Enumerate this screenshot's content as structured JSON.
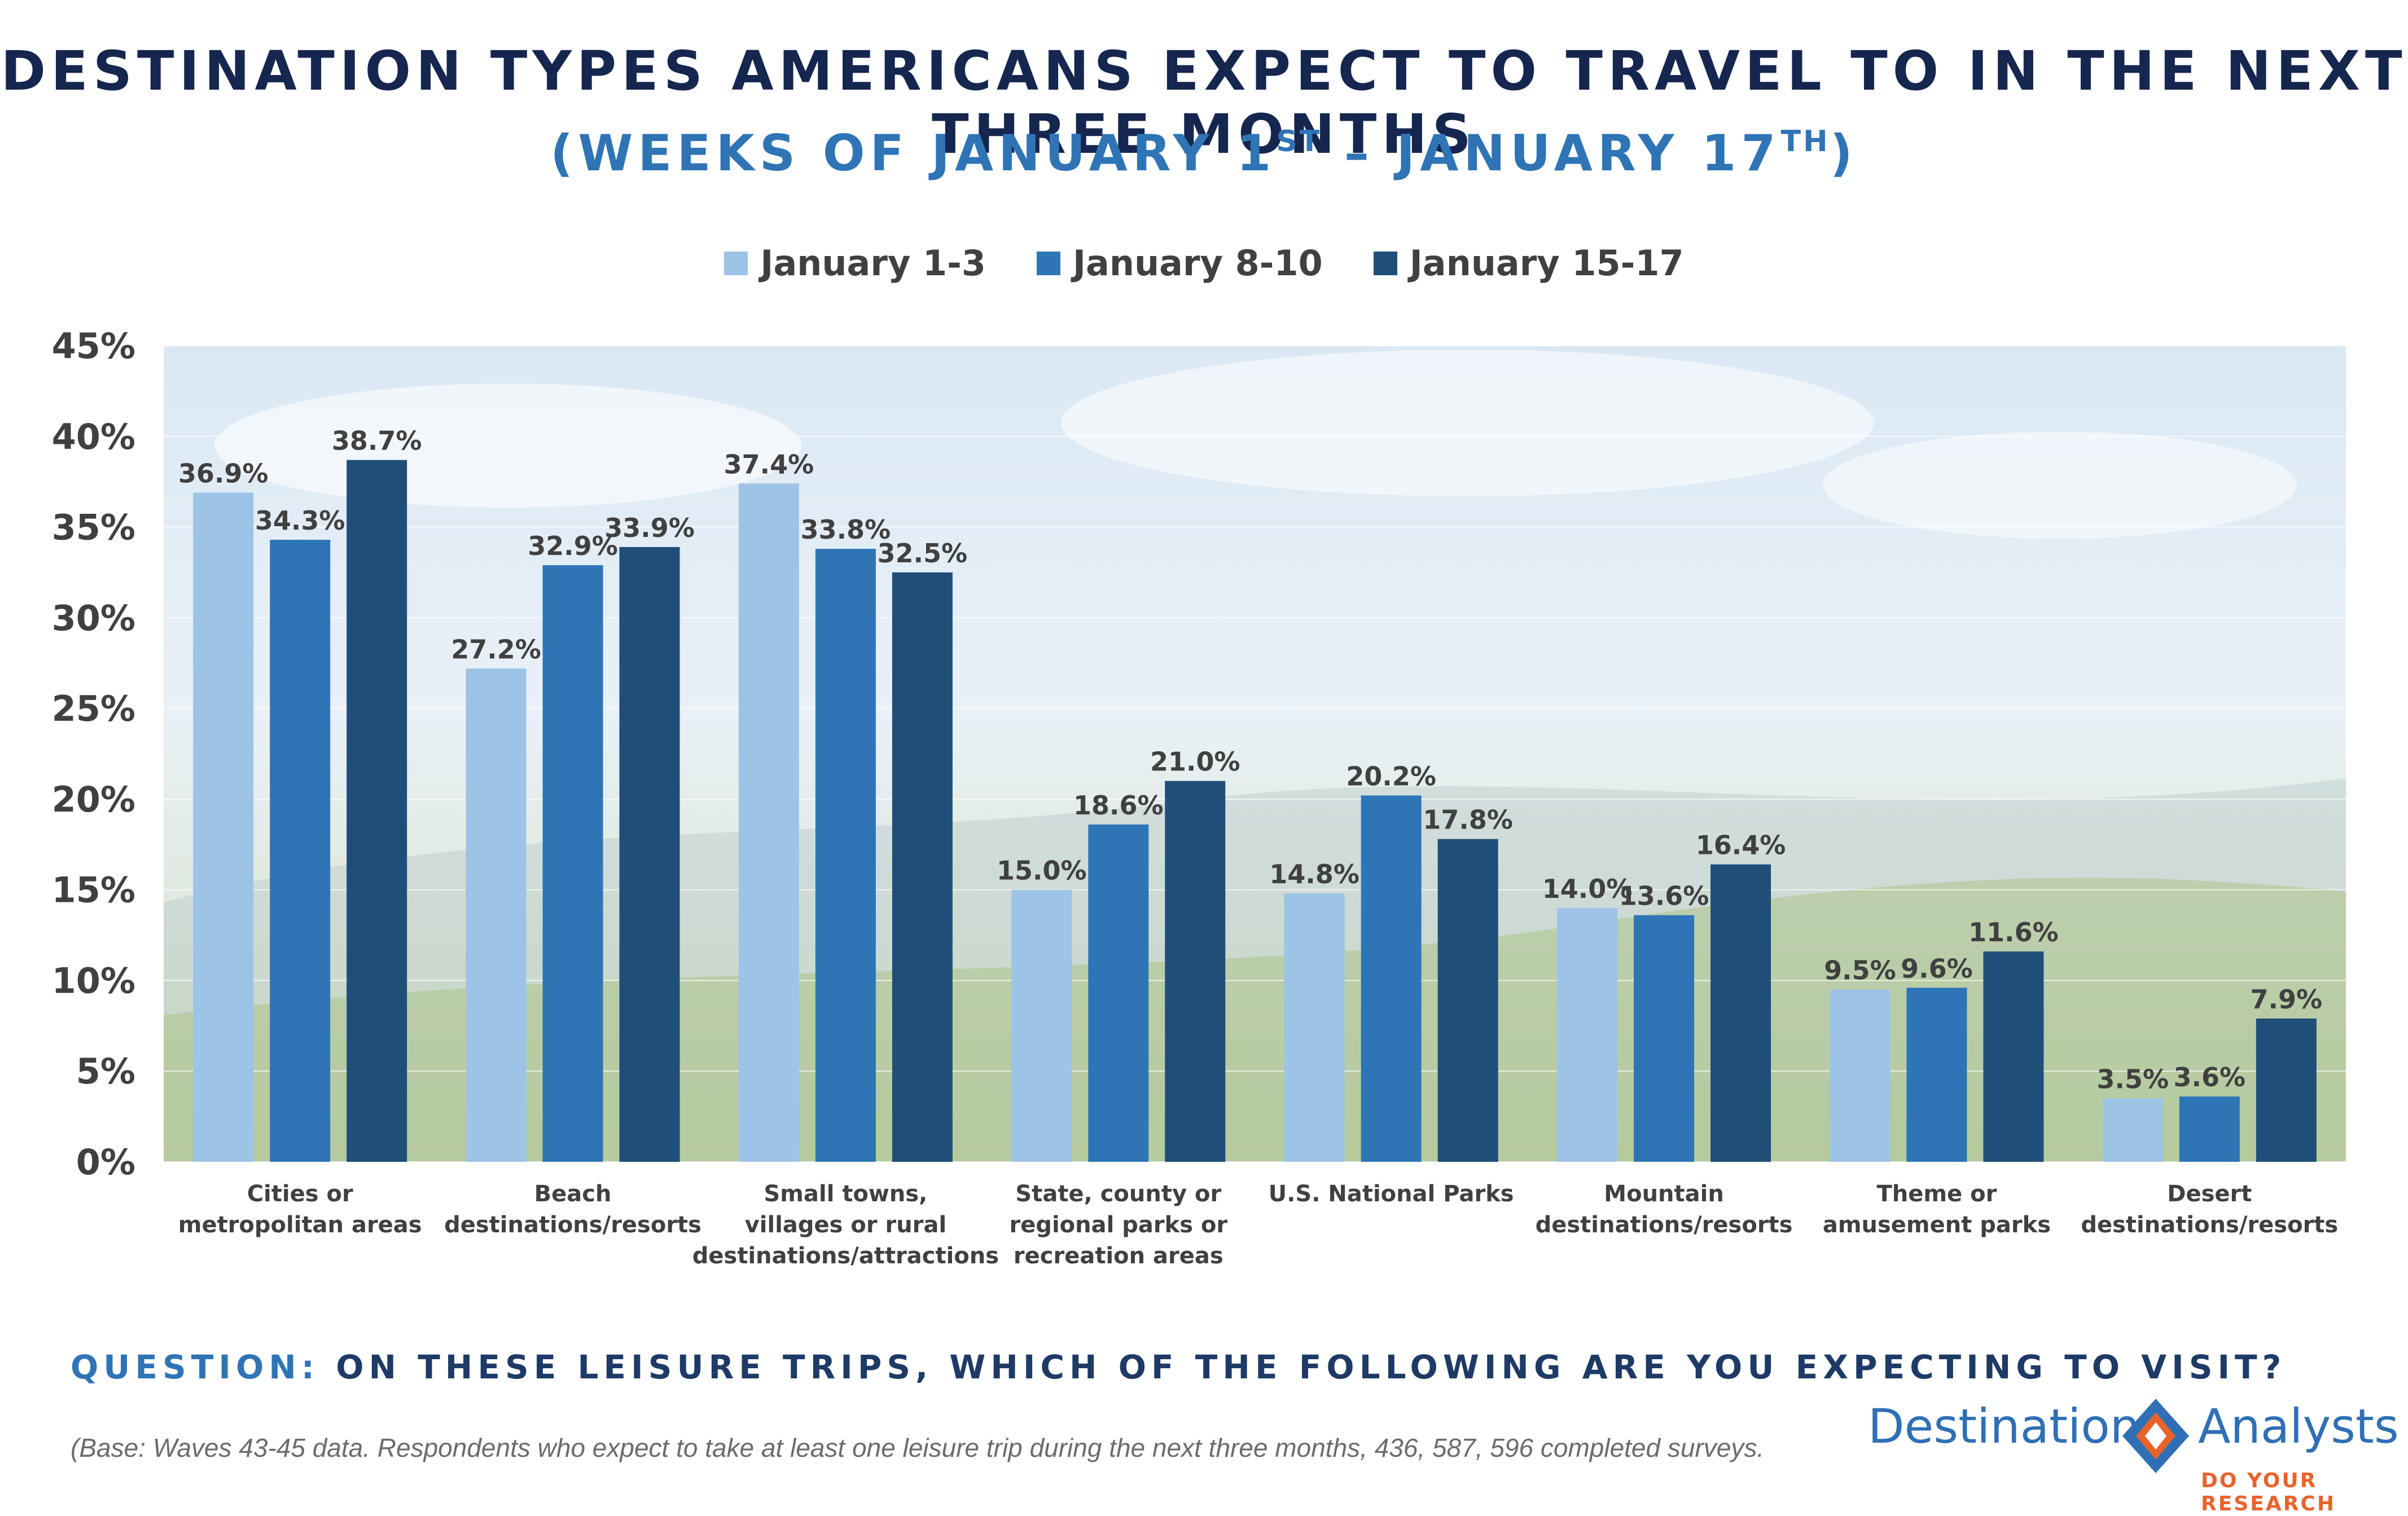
{
  "title": {
    "main": "DESTINATION TYPES AMERICANS EXPECT TO TRAVEL TO IN THE NEXT THREE MONTHS",
    "sub_prefix": "(WEEKS OF JANUARY 1",
    "sub_sup1": "ST",
    "sub_mid": " – JANUARY 17",
    "sub_sup2": "TH",
    "sub_suffix": ")"
  },
  "question": {
    "label": "QUESTION:",
    "text": "ON THESE LEISURE TRIPS, WHICH OF THE FOLLOWING ARE YOU EXPECTING TO VISIT?"
  },
  "base_note": "(Base: Waves 43-45 data. Respondents who expect to take at least one leisure trip during the next three months, 436, 587, 596 completed surveys.",
  "logo": {
    "left_word": "Destination",
    "right_word": "Analysts",
    "tagline": "DO YOUR RESEARCH"
  },
  "colors": {
    "series": [
      "#9dc3e6",
      "#2e75b6",
      "#1f4e79"
    ],
    "title": "#15264f",
    "subtitle": "#2f74b5",
    "logo_orange": "#e8632a"
  },
  "chart_data": {
    "type": "bar",
    "categories": [
      [
        "Cities or",
        "metropolitan areas"
      ],
      [
        "Beach",
        "destinations/resorts"
      ],
      [
        "Small towns,",
        "villages or rural",
        "destinations/attractions"
      ],
      [
        "State, county or",
        "regional parks or",
        "recreation areas"
      ],
      [
        "U.S. National Parks"
      ],
      [
        "Mountain",
        "destinations/resorts"
      ],
      [
        "Theme or",
        "amusement parks"
      ],
      [
        "Desert",
        "destinations/resorts"
      ]
    ],
    "series": [
      {
        "name": "January 1-3",
        "values": [
          36.9,
          27.2,
          37.4,
          15.0,
          14.8,
          14.0,
          9.5,
          3.5
        ]
      },
      {
        "name": "January 8-10",
        "values": [
          34.3,
          32.9,
          33.8,
          18.6,
          20.2,
          13.6,
          9.6,
          3.6
        ]
      },
      {
        "name": "January 15-17",
        "values": [
          38.7,
          33.9,
          32.5,
          21.0,
          17.8,
          16.4,
          11.6,
          7.9
        ]
      }
    ],
    "ylim": [
      0,
      45
    ],
    "yticks": [
      "0%",
      "5%",
      "10%",
      "15%",
      "20%",
      "25%",
      "30%",
      "35%",
      "40%",
      "45%"
    ],
    "value_suffix": "%",
    "legend_position": "top-center",
    "grid": true
  }
}
